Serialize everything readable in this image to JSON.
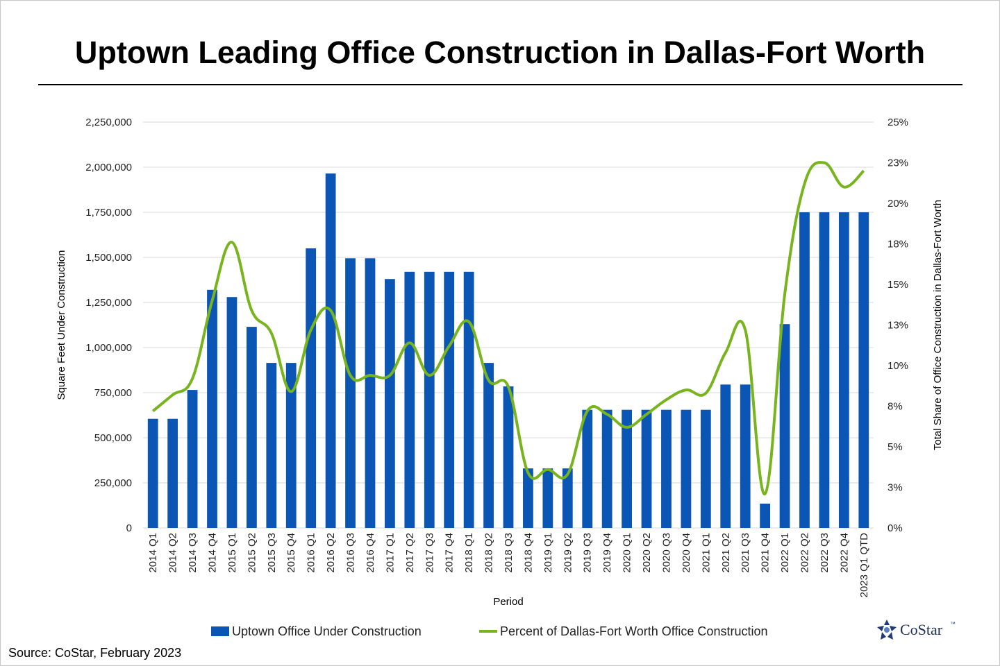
{
  "title": "Uptown Leading Office Construction in Dallas-Fort Worth",
  "source": "Source: CoStar, February 2023",
  "logo": {
    "text": "CoStar",
    "tm": "™",
    "color": "#1f3a7a"
  },
  "colors": {
    "bar": "#0b56b4",
    "line": "#78b41e",
    "grid": "#d9d9d9"
  },
  "chart_data": {
    "type": "bar",
    "xlabel": "Period",
    "ylabel": "Square Feet Under Construction",
    "y2label": "Total Share of Office Construction in Dallas-Fort Worth",
    "ylim": [
      0,
      2250000
    ],
    "y2lim": [
      0,
      25
    ],
    "yticks": [
      "0",
      "250,000",
      "500,000",
      "750,000",
      "1,000,000",
      "1,250,000",
      "1,500,000",
      "1,750,000",
      "2,000,000",
      "2,250,000"
    ],
    "y2ticks": [
      "0%",
      "3%",
      "5%",
      "8%",
      "10%",
      "13%",
      "15%",
      "18%",
      "20%",
      "23%",
      "25%"
    ],
    "categories": [
      "2014 Q1",
      "2014 Q2",
      "2014 Q3",
      "2014 Q4",
      "2015 Q1",
      "2015 Q2",
      "2015 Q3",
      "2015 Q4",
      "2016 Q1",
      "2016 Q2",
      "2016 Q3",
      "2016 Q4",
      "2017 Q1",
      "2017 Q2",
      "2017 Q3",
      "2017 Q4",
      "2018 Q1",
      "2018 Q2",
      "2018 Q3",
      "2018 Q4",
      "2019 Q1",
      "2019 Q2",
      "2019 Q3",
      "2019 Q4",
      "2020 Q1",
      "2020 Q2",
      "2020 Q3",
      "2020 Q4",
      "2021 Q1",
      "2021 Q2",
      "2021 Q3",
      "2021 Q4",
      "2022 Q1",
      "2022 Q2",
      "2022 Q3",
      "2022 Q4",
      "2023 Q1 QTD"
    ],
    "series": [
      {
        "name": "Uptown Office Under Construction",
        "type": "bar",
        "axis": "left",
        "values": [
          605000,
          605000,
          765000,
          1320000,
          1280000,
          1115000,
          915000,
          915000,
          1550000,
          1965000,
          1495000,
          1495000,
          1380000,
          1420000,
          1420000,
          1420000,
          1420000,
          915000,
          785000,
          330000,
          330000,
          330000,
          655000,
          655000,
          655000,
          655000,
          655000,
          655000,
          655000,
          795000,
          795000,
          135000,
          1130000,
          1750000,
          1750000,
          1750000,
          1750000
        ]
      },
      {
        "name": "Percent of Dallas-Fort Worth Office Construction",
        "type": "line",
        "axis": "right",
        "values": [
          7.2,
          8.2,
          9.2,
          14.0,
          17.6,
          13.4,
          12.0,
          8.4,
          12.2,
          13.4,
          9.4,
          9.4,
          9.4,
          11.4,
          9.4,
          11.2,
          12.7,
          9.1,
          8.7,
          3.4,
          3.6,
          3.3,
          7.2,
          7.0,
          6.2,
          7.0,
          7.9,
          8.5,
          8.3,
          10.8,
          12.2,
          2.1,
          14.4,
          21.2,
          22.5,
          21.0,
          22.0
        ]
      }
    ]
  }
}
